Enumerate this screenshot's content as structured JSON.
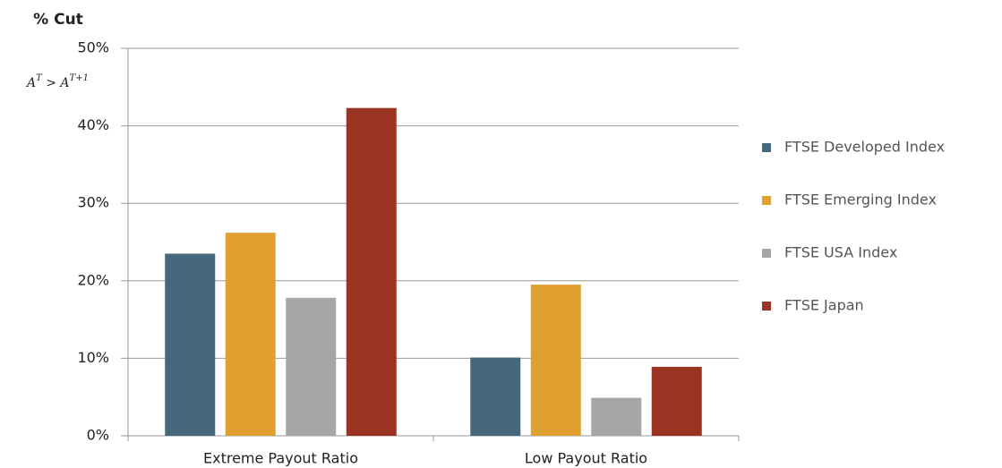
{
  "chart_data": {
    "type": "bar",
    "title": "% Cut",
    "annotation": [
      "A",
      "T",
      " > A",
      "T+1"
    ],
    "categories": [
      "Extreme Payout Ratio",
      "Low Payout Ratio"
    ],
    "series": [
      {
        "name": "FTSE Developed Index",
        "color": "#46687c",
        "values": [
          23.5,
          10.1
        ]
      },
      {
        "name": "FTSE Emerging Index",
        "color": "#e0a030",
        "values": [
          26.2,
          19.5
        ]
      },
      {
        "name": "FTSE USA Index",
        "color": "#a6a6a6",
        "values": [
          17.8,
          4.9
        ]
      },
      {
        "name": "FTSE Japan",
        "color": "#9b3323",
        "values": [
          42.3,
          8.9
        ]
      }
    ],
    "ylim": [
      0,
      50
    ],
    "yticks": [
      {
        "value": 0,
        "label": "0%"
      },
      {
        "value": 10,
        "label": "10%"
      },
      {
        "value": 20,
        "label": "20%"
      },
      {
        "value": 30,
        "label": "30%"
      },
      {
        "value": 40,
        "label": "40%"
      },
      {
        "value": 50,
        "label": "50%"
      }
    ],
    "grid": true,
    "legend": "right"
  }
}
